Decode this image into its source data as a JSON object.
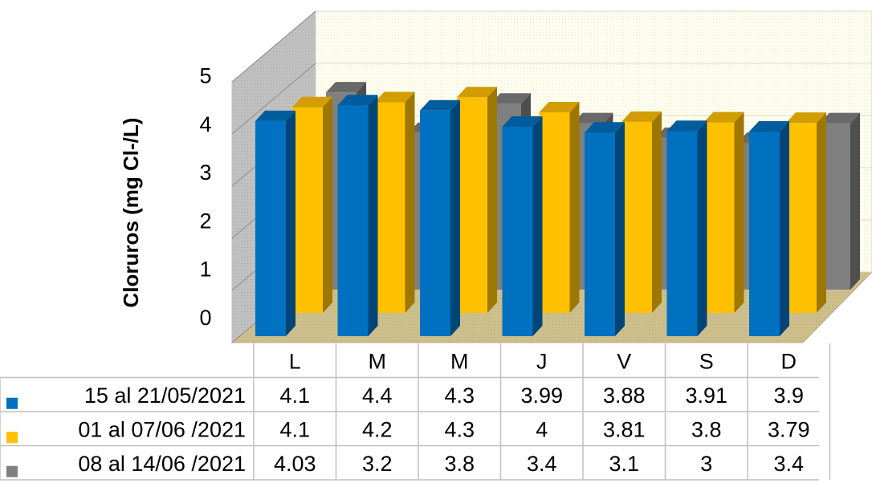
{
  "chart_data": {
    "type": "bar",
    "title": "",
    "xlabel": "",
    "ylabel": "Cloruros (mg Cl-/L)",
    "ylim": [
      0,
      5
    ],
    "yticks": [
      "0",
      "1",
      "2",
      "3",
      "4",
      "5"
    ],
    "categories": [
      "L",
      "M",
      "M",
      "J",
      "V",
      "S",
      "D"
    ],
    "series": [
      {
        "name": "15 al 21/05/2021",
        "values": [
          4.1,
          4.4,
          4.3,
          3.99,
          3.88,
          3.91,
          3.9
        ],
        "value_labels": [
          "4.1",
          "4.4",
          "4.3",
          "3.99",
          "3.88",
          "3.91",
          "3.9"
        ]
      },
      {
        "name": "01 al 07/06 /2021",
        "values": [
          4.1,
          4.2,
          4.3,
          4,
          3.81,
          3.8,
          3.79
        ],
        "value_labels": [
          "4.1",
          "4.2",
          "4.3",
          "4",
          "3.81",
          "3.8",
          "3.79"
        ]
      },
      {
        "name": "08 al 14/06 /2021",
        "values": [
          4.03,
          3.2,
          3.8,
          3.4,
          3.1,
          3,
          3.4
        ],
        "value_labels": [
          "4.03",
          "3.2",
          "3.8",
          "3.4",
          "3.1",
          "3",
          "3.4"
        ]
      }
    ],
    "colors": [
      "#0070C0",
      "#FFC000",
      "#808080"
    ],
    "grid": true,
    "legend": "data-table",
    "view": "3d-clustered-column"
  }
}
